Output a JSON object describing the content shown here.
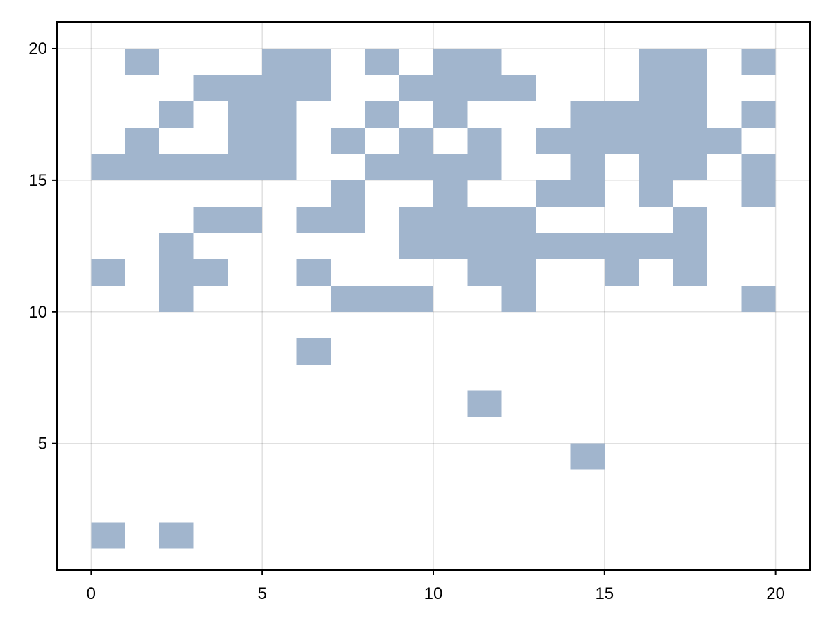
{
  "chart_data": {
    "type": "heatmap",
    "title": "",
    "xlabel": "",
    "ylabel": "",
    "xlim": [
      -1,
      21
    ],
    "ylim": [
      0.2,
      21
    ],
    "x_ticks": [
      0,
      5,
      10,
      15,
      20
    ],
    "y_ticks": [
      5,
      10,
      15,
      20
    ],
    "x_tick_labels": [
      "0",
      "5",
      "10",
      "15",
      "20"
    ],
    "y_tick_labels": [
      "5",
      "10",
      "15",
      "20"
    ],
    "grid": true,
    "legend": "none",
    "cell_size": 1,
    "fill_color": "#a1b5cd",
    "cells": [
      [
        0,
        1
      ],
      [
        2,
        1
      ],
      [
        14,
        4
      ],
      [
        11,
        6
      ],
      [
        6,
        8
      ],
      [
        2,
        10
      ],
      [
        7,
        10
      ],
      [
        8,
        10
      ],
      [
        9,
        10
      ],
      [
        12,
        10
      ],
      [
        19,
        10
      ],
      [
        0,
        11
      ],
      [
        2,
        11
      ],
      [
        3,
        11
      ],
      [
        6,
        11
      ],
      [
        11,
        11
      ],
      [
        12,
        11
      ],
      [
        15,
        11
      ],
      [
        17,
        11
      ],
      [
        2,
        12
      ],
      [
        9,
        12
      ],
      [
        10,
        12
      ],
      [
        11,
        12
      ],
      [
        12,
        12
      ],
      [
        13,
        12
      ],
      [
        14,
        12
      ],
      [
        15,
        12
      ],
      [
        16,
        12
      ],
      [
        17,
        12
      ],
      [
        3,
        13
      ],
      [
        4,
        13
      ],
      [
        6,
        13
      ],
      [
        7,
        13
      ],
      [
        9,
        13
      ],
      [
        10,
        13
      ],
      [
        11,
        13
      ],
      [
        12,
        13
      ],
      [
        17,
        13
      ],
      [
        7,
        14
      ],
      [
        10,
        14
      ],
      [
        13,
        14
      ],
      [
        14,
        14
      ],
      [
        16,
        14
      ],
      [
        19,
        14
      ],
      [
        0,
        15
      ],
      [
        1,
        15
      ],
      [
        2,
        15
      ],
      [
        3,
        15
      ],
      [
        4,
        15
      ],
      [
        5,
        15
      ],
      [
        8,
        15
      ],
      [
        9,
        15
      ],
      [
        10,
        15
      ],
      [
        11,
        15
      ],
      [
        14,
        15
      ],
      [
        16,
        15
      ],
      [
        17,
        15
      ],
      [
        19,
        15
      ],
      [
        1,
        16
      ],
      [
        4,
        16
      ],
      [
        5,
        16
      ],
      [
        7,
        16
      ],
      [
        9,
        16
      ],
      [
        11,
        16
      ],
      [
        13,
        16
      ],
      [
        14,
        16
      ],
      [
        15,
        16
      ],
      [
        16,
        16
      ],
      [
        17,
        16
      ],
      [
        18,
        16
      ],
      [
        2,
        17
      ],
      [
        4,
        17
      ],
      [
        5,
        17
      ],
      [
        8,
        17
      ],
      [
        10,
        17
      ],
      [
        14,
        17
      ],
      [
        15,
        17
      ],
      [
        16,
        17
      ],
      [
        17,
        17
      ],
      [
        19,
        17
      ],
      [
        3,
        18
      ],
      [
        4,
        18
      ],
      [
        5,
        18
      ],
      [
        6,
        18
      ],
      [
        9,
        18
      ],
      [
        10,
        18
      ],
      [
        11,
        18
      ],
      [
        12,
        18
      ],
      [
        16,
        18
      ],
      [
        17,
        18
      ],
      [
        1,
        19
      ],
      [
        5,
        19
      ],
      [
        6,
        19
      ],
      [
        8,
        19
      ],
      [
        10,
        19
      ],
      [
        11,
        19
      ],
      [
        16,
        19
      ],
      [
        17,
        19
      ],
      [
        19,
        19
      ]
    ]
  }
}
